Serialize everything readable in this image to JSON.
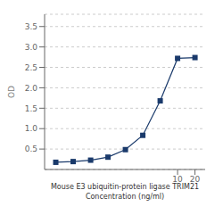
{
  "chart_data": {
    "type": "line",
    "xlabel": "Mouse E3 ubiquitin-protein ligase TRIM21\nConcentration (ng/ml)",
    "ylabel": "OD",
    "x": [
      0.078,
      0.156,
      0.313,
      0.625,
      1.25,
      2.5,
      5,
      10,
      20
    ],
    "values": [
      0.176,
      0.194,
      0.228,
      0.302,
      0.486,
      0.836,
      1.68,
      2.72,
      2.74
    ],
    "color": "#1a3a6b",
    "marker": "square",
    "log": "x",
    "xlim": [
      0.05,
      30
    ],
    "xticks": [
      10,
      20
    ],
    "ylim": [
      0,
      3.8
    ],
    "yticks": [
      0.5,
      {
        "value": 1.0,
        "label": "1.0"
      },
      1.5,
      {
        "value": 2.0,
        "label": "2.0"
      },
      2.5,
      {
        "value": 3.0,
        "label": "3.0"
      },
      3.5
    ],
    "grid": true
  }
}
